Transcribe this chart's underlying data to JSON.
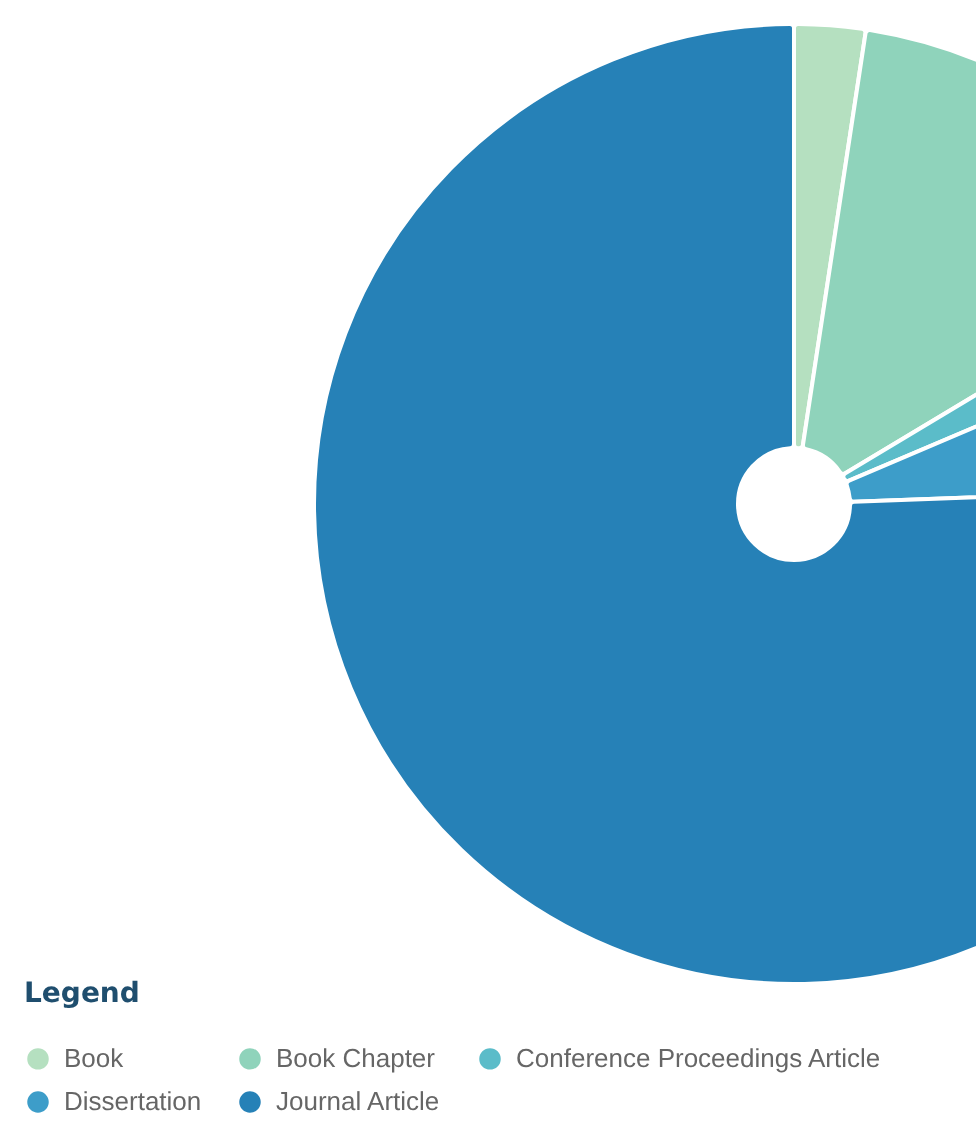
{
  "chart_data": {
    "type": "pie",
    "legend_title": "Legend",
    "legend": "bottom left",
    "categories": [
      "Book",
      "Book Chapter",
      "Conference Proceedings Article",
      "Dissertation",
      "Journal Article"
    ],
    "values": [
      2.4,
      14.0,
      2.2,
      5.8,
      75.6
    ],
    "colors": [
      "#b5e0c0",
      "#8fd3bb",
      "#5bbcc9",
      "#3d9dc9",
      "#2681b7"
    ]
  }
}
